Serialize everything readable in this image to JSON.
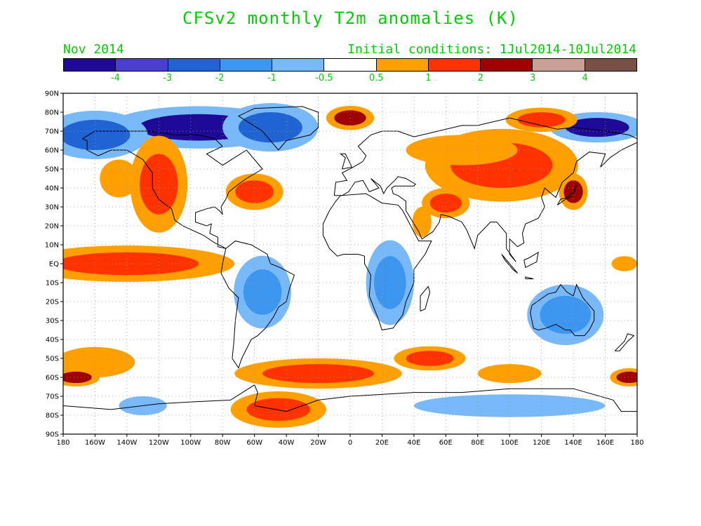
{
  "title": "CFSv2 monthly T2m anomalies (K)",
  "month_label": "Nov 2014",
  "initial_conditions": "Initial conditions: 1Jul2014-10Jul2014",
  "colorbar": {
    "colors": [
      "#1e0a96",
      "#4a3ed2",
      "#1f64d2",
      "#3c96f0",
      "#78b9fa",
      "#ffffff",
      "#ffa000",
      "#ff3200",
      "#a00000",
      "#c8a096",
      "#785046"
    ],
    "labels": [
      "-4",
      "-3",
      "-2",
      "-1",
      "-0.5",
      "0.5",
      "1",
      "2",
      "3",
      "4"
    ]
  },
  "lat_labels": [
    "90N",
    "80N",
    "70N",
    "60N",
    "50N",
    "40N",
    "30N",
    "20N",
    "10N",
    "EQ",
    "10S",
    "20S",
    "30S",
    "40S",
    "50S",
    "60S",
    "70S",
    "80S",
    "90S"
  ],
  "lon_labels": [
    "180",
    "160W",
    "140W",
    "120W",
    "100W",
    "80W",
    "60W",
    "40W",
    "20W",
    "0",
    "20E",
    "40E",
    "60E",
    "80E",
    "100E",
    "120E",
    "140E",
    "160E",
    "180"
  ],
  "anomaly_regions": [
    {
      "name": "arctic-canada-cold",
      "lon": -95,
      "lat": 72,
      "rx": 38,
      "ry": 7,
      "level": "-4"
    },
    {
      "name": "greenland-cold",
      "lon": -50,
      "lat": 72,
      "rx": 20,
      "ry": 8,
      "level": "-2"
    },
    {
      "name": "alaska-cold",
      "lon": -160,
      "lat": 68,
      "rx": 22,
      "ry": 8,
      "level": "-2"
    },
    {
      "name": "east-siberia-cold",
      "lon": 155,
      "lat": 72,
      "rx": 20,
      "ry": 5,
      "level": "-4"
    },
    {
      "name": "barents-warm",
      "lon": 0,
      "lat": 77,
      "rx": 10,
      "ry": 4,
      "level": "3"
    },
    {
      "name": "kara-warm",
      "lon": 120,
      "lat": 76,
      "rx": 15,
      "ry": 4,
      "level": "2"
    },
    {
      "name": "west-na-warm",
      "lon": -120,
      "lat": 42,
      "rx": 12,
      "ry": 16,
      "level": "2"
    },
    {
      "name": "ne-pacific-warm",
      "lon": -145,
      "lat": 45,
      "rx": 12,
      "ry": 10,
      "level": "1"
    },
    {
      "name": "nw-atlantic-warm",
      "lon": -60,
      "lat": 38,
      "rx": 12,
      "ry": 6,
      "level": "2"
    },
    {
      "name": "siberia-warm",
      "lon": 95,
      "lat": 52,
      "rx": 32,
      "ry": 12,
      "level": "2"
    },
    {
      "name": "north-asia-warm",
      "lon": 70,
      "lat": 60,
      "rx": 35,
      "ry": 8,
      "level": "1"
    },
    {
      "name": "arabia-warm",
      "lon": 45,
      "lat": 22,
      "rx": 6,
      "ry": 8,
      "level": "1"
    },
    {
      "name": "iran-warm",
      "lon": 60,
      "lat": 32,
      "rx": 10,
      "ry": 5,
      "level": "2"
    },
    {
      "name": "japan-warm",
      "lon": 140,
      "lat": 38,
      "rx": 6,
      "ry": 6,
      "level": "3"
    },
    {
      "name": "east-pacific-eq-warm",
      "lon": -140,
      "lat": 0,
      "rx": 45,
      "ry": 6,
      "level": "2"
    },
    {
      "name": "west-pacific-eq-warm",
      "lon": 172,
      "lat": 0,
      "rx": 8,
      "ry": 4,
      "level": "1"
    },
    {
      "name": "south-america-cold",
      "lon": -55,
      "lat": -15,
      "rx": 12,
      "ry": 12,
      "level": "-1"
    },
    {
      "name": "africa-cold",
      "lon": 25,
      "lat": -10,
      "rx": 10,
      "ry": 14,
      "level": "-1"
    },
    {
      "name": "australia-cold",
      "lon": 135,
      "lat": -27,
      "rx": 16,
      "ry": 10,
      "level": "-1"
    },
    {
      "name": "south-atlantic-warm",
      "lon": -20,
      "lat": -58,
      "rx": 35,
      "ry": 5,
      "level": "2"
    },
    {
      "name": "south-indian-warm",
      "lon": 50,
      "lat": -50,
      "rx": 15,
      "ry": 4,
      "level": "2"
    },
    {
      "name": "south-indian-east-warm",
      "lon": 100,
      "lat": -58,
      "rx": 20,
      "ry": 5,
      "level": "1"
    },
    {
      "name": "south-pacific-warm",
      "lon": -160,
      "lat": -52,
      "rx": 25,
      "ry": 8,
      "level": "1"
    },
    {
      "name": "dateline-south-warm",
      "lon": -172,
      "lat": -60,
      "rx": 10,
      "ry": 3,
      "level": "3"
    },
    {
      "name": "weddell-warm",
      "lon": -45,
      "lat": -77,
      "rx": 20,
      "ry": 6,
      "level": "2"
    },
    {
      "name": "ross-warm",
      "lon": 175,
      "lat": -60,
      "rx": 8,
      "ry": 3,
      "level": "3"
    },
    {
      "name": "antarctica-cold",
      "lon": 100,
      "lat": -75,
      "rx": 60,
      "ry": 6,
      "level": "-0.5"
    },
    {
      "name": "southern-ocean-cold",
      "lon": -130,
      "lat": -75,
      "rx": 15,
      "ry": 5,
      "level": "-0.5"
    }
  ]
}
